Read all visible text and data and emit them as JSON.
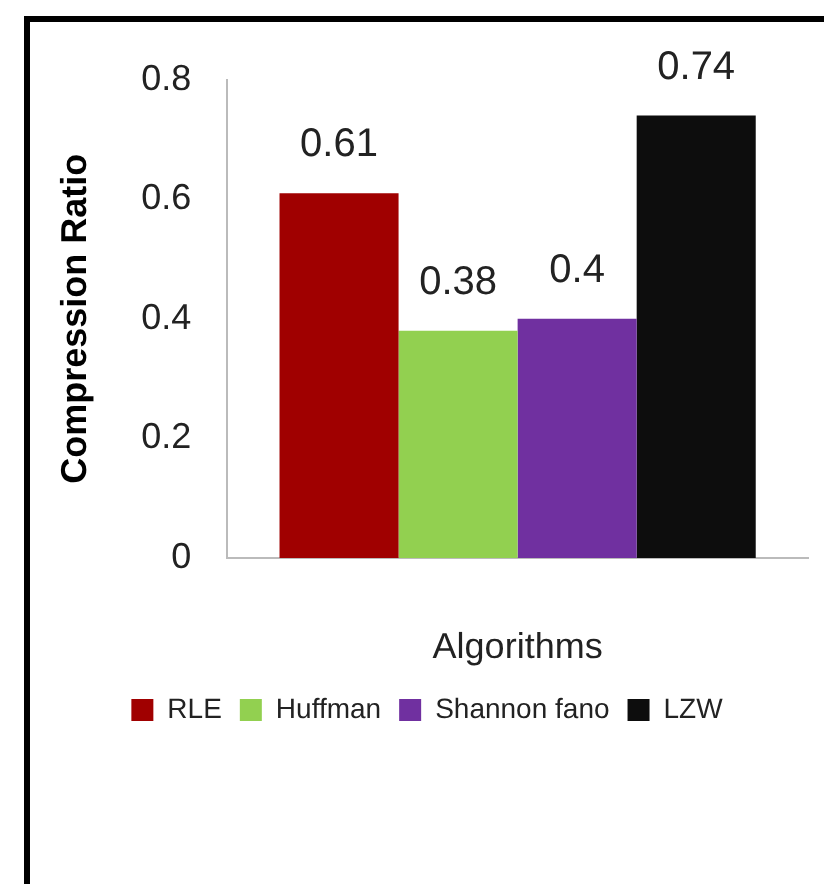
{
  "chart_data": {
    "type": "bar",
    "xlabel": "Algorithms",
    "ylabel": "Compression Ratio",
    "categories": [
      null
    ],
    "series": [
      {
        "name": "RLE",
        "color": "#a00000",
        "values": [
          0.61
        ]
      },
      {
        "name": "Huffman",
        "color": "#92d050",
        "values": [
          0.38
        ]
      },
      {
        "name": "Shannon fano",
        "color": "#7030a0",
        "values": [
          0.4
        ]
      },
      {
        "name": "LZW",
        "color": "#0d0d0d",
        "values": [
          0.74
        ]
      }
    ],
    "ylim": [
      0,
      0.8
    ],
    "yticks": [
      0,
      0.2,
      0.4,
      0.6,
      0.8
    ],
    "grid": false,
    "legend": "bottom",
    "data_labels": true
  }
}
